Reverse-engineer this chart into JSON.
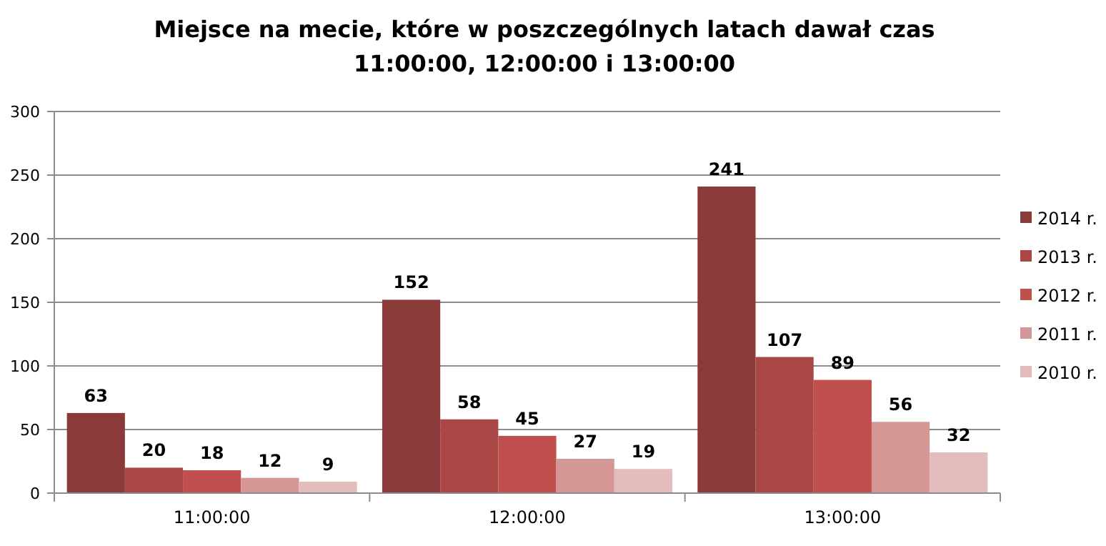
{
  "chart_data": {
    "type": "bar",
    "title": "Miejsce na mecie, które w poszczególnych latach dawał czas 11:00:00, 12:00:00 i 13:00:00",
    "categories": [
      "11:00:00",
      "12:00:00",
      "13:00:00"
    ],
    "series": [
      {
        "name": "2014 r.",
        "color": "#8b3a3a",
        "values": [
          63,
          152,
          241
        ]
      },
      {
        "name": "2013 r.",
        "color": "#a94646",
        "values": [
          20,
          58,
          107
        ]
      },
      {
        "name": "2012 r.",
        "color": "#c0504d",
        "values": [
          18,
          45,
          89
        ]
      },
      {
        "name": "2011 r.",
        "color": "#d49795",
        "values": [
          12,
          27,
          56
        ]
      },
      {
        "name": "2010 r.",
        "color": "#e4bcbb",
        "values": [
          9,
          19,
          32
        ]
      }
    ],
    "ylim": [
      0,
      300
    ],
    "yticks": [
      0,
      50,
      100,
      150,
      200,
      250,
      300
    ],
    "grid": "y",
    "legend": "right",
    "data_labels": true
  }
}
